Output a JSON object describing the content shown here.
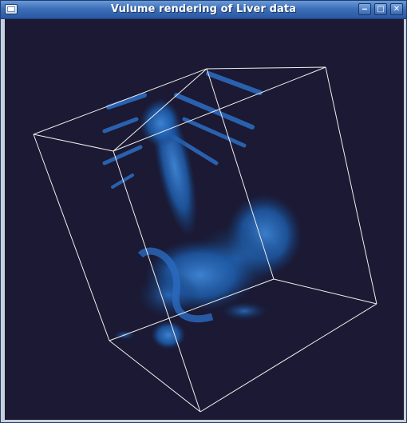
{
  "window": {
    "title": "Vulume rendering of Liver data",
    "controls": {
      "minimize_icon": "minimize-icon",
      "maximize_icon": "maximize-icon",
      "close_icon": "close-icon"
    }
  },
  "viewport": {
    "background_color": "#1b1933",
    "bounding_box_color": "#f0f0f0",
    "volume_color": "#1e5fb0"
  }
}
